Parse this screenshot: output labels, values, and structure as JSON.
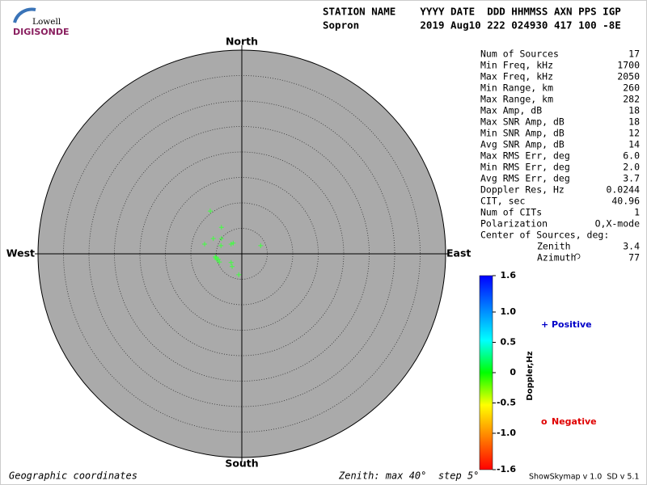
{
  "logo": {
    "top": "Lowell",
    "bottom": "DIGISONDE"
  },
  "header": {
    "line1": "STATION NAME    YYYY DATE  DDD HHMMSS AXN PPS IGP",
    "line2": "Sopron          2019 Aug10 222 024930 417 100 -8E"
  },
  "chart_data": {
    "type": "scatter",
    "marker": "+",
    "color": "#40ff40",
    "x": [
      -6.2,
      -4.0,
      -5.6,
      -4.0,
      -7.3,
      -4.1,
      -2.1,
      -1.7,
      3.7,
      -5.2,
      -4.9,
      -4.4,
      -4.6,
      -2.1,
      -1.9,
      -0.6,
      -5.1
    ],
    "values": [
      8.4,
      5.2,
      3.0,
      3.0,
      1.9,
      1.6,
      1.9,
      2.1,
      1.6,
      -0.6,
      -1.1,
      -1.6,
      -1.1,
      -1.7,
      -2.5,
      -4.1,
      -0.8
    ],
    "xlim": [
      -40,
      40
    ],
    "ylim": [
      -40,
      40
    ],
    "rings": [
      5,
      10,
      15,
      20,
      25,
      30,
      35
    ],
    "directions": {
      "north": "North",
      "south": "South",
      "east": "East",
      "west": "West"
    }
  },
  "stats": {
    "rows": [
      [
        "Num of Sources",
        "17"
      ],
      [
        "Min Freq, kHz",
        "1700"
      ],
      [
        "Max Freq, kHz",
        "2050"
      ],
      [
        "Min Range, km",
        "260"
      ],
      [
        "Max Range, km",
        "282"
      ],
      [
        "Max Amp, dB",
        "18"
      ],
      [
        "Max SNR Amp, dB",
        "18"
      ],
      [
        "Min SNR Amp, dB",
        "12"
      ],
      [
        "Avg SNR Amp, dB",
        "14"
      ],
      [
        "Max RMS Err, deg",
        "6.0"
      ],
      [
        "Min RMS Err, deg",
        "2.0"
      ],
      [
        "Avg RMS Err, deg",
        "3.7"
      ],
      [
        "Doppler Res, Hz",
        "0.0244"
      ],
      [
        "CIT, sec",
        "40.96"
      ],
      [
        "Num of CITs",
        "1"
      ],
      [
        "Polarization",
        "O,X-mode"
      ],
      [
        "Center of Sources, deg:",
        ""
      ]
    ],
    "sub_rows": [
      [
        "Zenith",
        "3.4"
      ],
      [
        "Azimuth",
        "77"
      ]
    ]
  },
  "colorbar": {
    "label": "Doppler,Hz",
    "lim": [
      -1.6,
      1.6
    ],
    "colors": [
      "#ff0000",
      "#ff8000",
      "#ffff00",
      "#00ff00",
      "#00ffff",
      "#0080ff",
      "#0000ff"
    ],
    "ticks": [
      1.6,
      {
        "value": 1,
        "label": "1.0"
      },
      0.5,
      0,
      -0.5,
      {
        "value": -1,
        "label": "-1.0"
      },
      -1.6
    ]
  },
  "legend": [
    {
      "symbol": "+",
      "label": "Positive",
      "color": "#0000c8"
    },
    {
      "symbol": "o",
      "label": "Negative",
      "color": "#e00000"
    }
  ],
  "footer": {
    "left": "Geographic coordinates",
    "center": "Zenith: max 40°  step 5°",
    "right": "ShowSkymap v 1.0  SD v 5.1"
  }
}
